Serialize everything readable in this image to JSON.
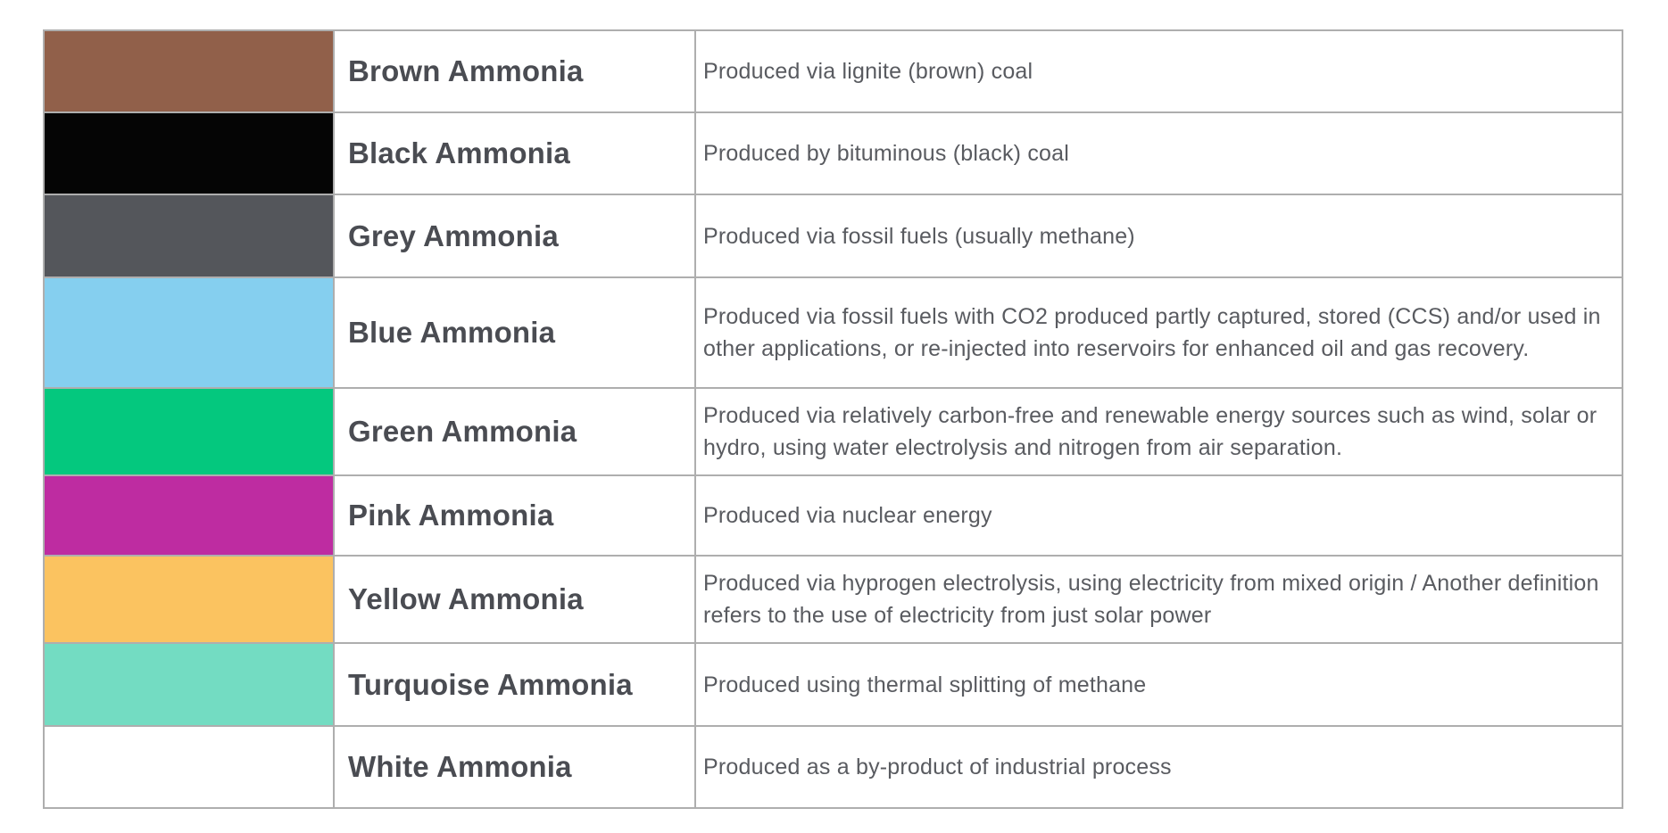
{
  "page": {
    "background_color": "#ffffff"
  },
  "table": {
    "border_color": "#aeaeae",
    "name_text_color": "#4a4c52",
    "description_text_color": "#595b60",
    "rows": [
      {
        "swatch_color": "#91604a",
        "name": "Brown Ammonia",
        "description": "Produced via lignite (brown) coal"
      },
      {
        "swatch_color": "#050505",
        "name": "Black Ammonia",
        "description": "Produced by bituminous (black) coal"
      },
      {
        "swatch_color": "#54565b",
        "name": "Grey Ammonia",
        "description": "Produced via fossil fuels (usually methane)"
      },
      {
        "swatch_color": "#85cfef",
        "name": "Blue Ammonia",
        "description": "Produced via fossil fuels with CO2 produced partly captured, stored (CCS) and/or used in other applications, or re-injected into reservoirs for enhanced oil and gas recovery."
      },
      {
        "swatch_color": "#04c87e",
        "name": "Green Ammonia",
        "description": "Produced via relatively carbon-free and renewable energy sources such as wind, solar or hydro, using water electrolysis and nitrogen from air separation."
      },
      {
        "swatch_color": "#be2ca1",
        "name": "Pink Ammonia",
        "description": "Produced via nuclear energy"
      },
      {
        "swatch_color": "#fbc360",
        "name": "Yellow Ammonia",
        "description": "Produced via hyprogen electrolysis, using electricity from mixed origin / Another definition refers to the use of electricity from just solar power"
      },
      {
        "swatch_color": "#73dcc2",
        "name": "Turquoise Ammonia",
        "description": "Produced using thermal splitting of methane"
      },
      {
        "swatch_color": "#ffffff",
        "name": "White Ammonia",
        "description": "Produced as a by-product of industrial process"
      }
    ]
  }
}
